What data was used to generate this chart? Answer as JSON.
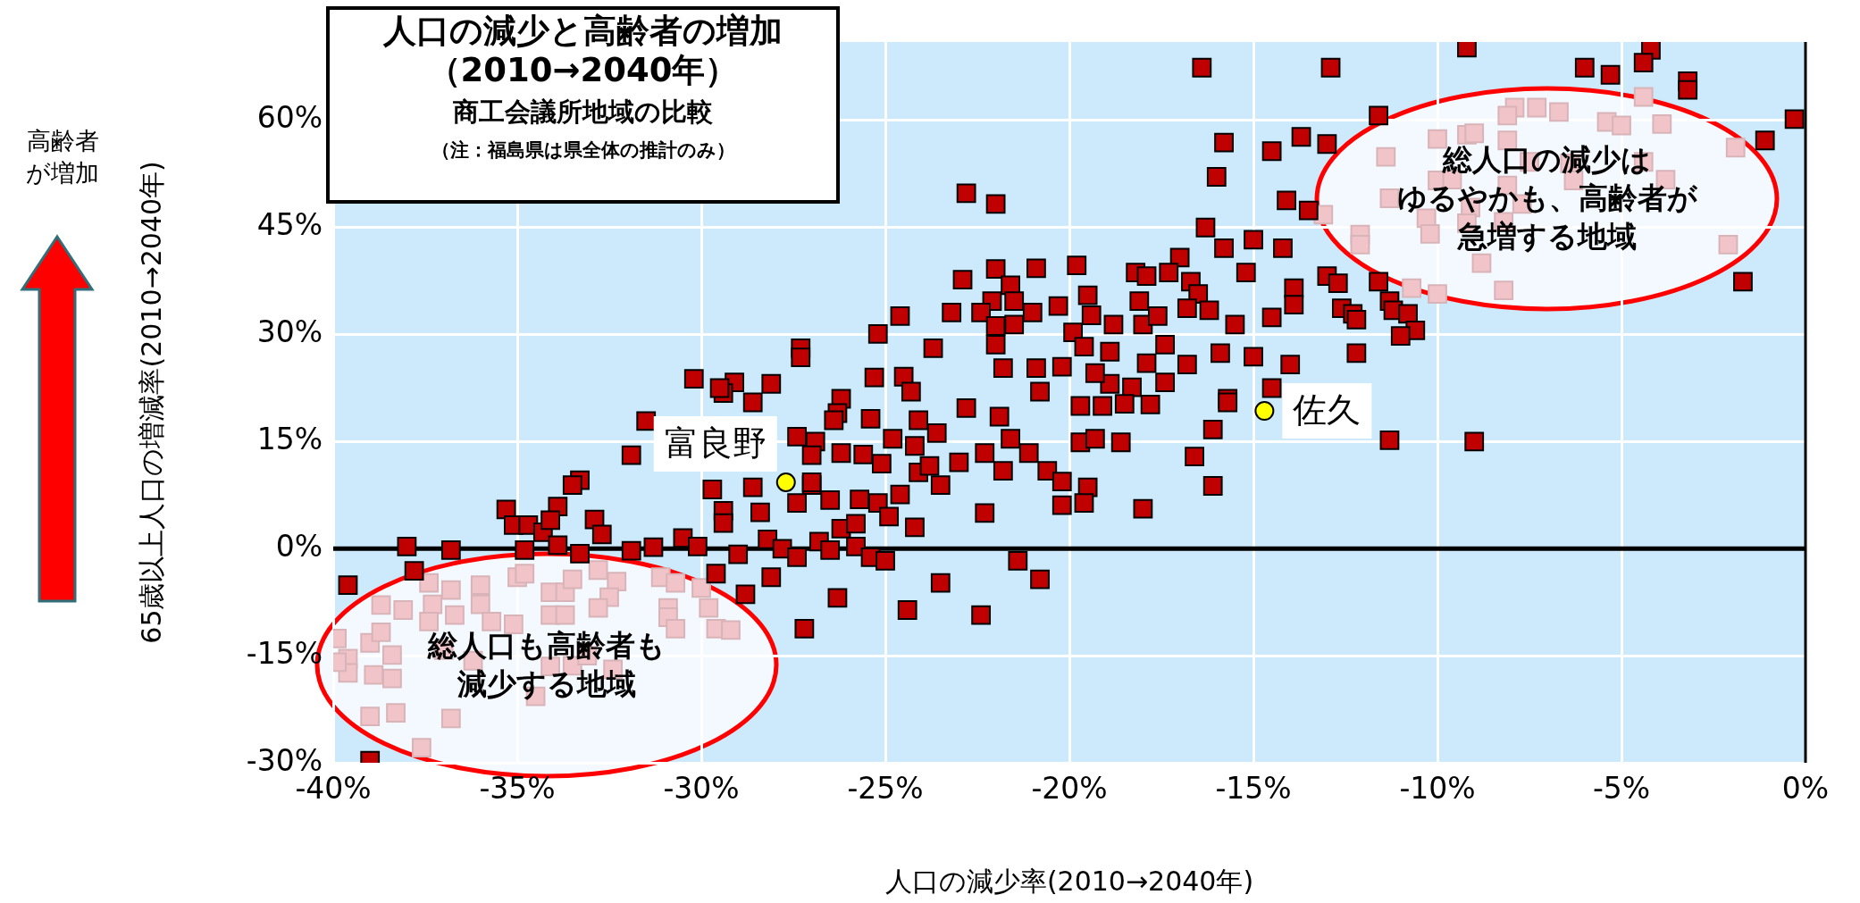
{
  "chart_data": {
    "type": "scatter",
    "title": "人口の減少と高齢者の増加（2010→2040年）",
    "subtitle": "商工会議所地域の比較",
    "xlabel": "人口の減少率(2010→2040年)",
    "ylabel": "65歳以上人口の増減率(2010→2040年)",
    "annotations": [
      "（注：福島県は県全体の推計のみ）",
      "総人口も高齢者も",
      "減少する地域",
      "総人口の減少は",
      "ゆるやかも、高齢者が",
      "急増する地域",
      "高齢者",
      "が増加"
    ],
    "xlim": [
      -40,
      0
    ],
    "ylim": [
      -30,
      71
    ],
    "xticks": [
      {
        "value": -40,
        "label": "-40%"
      },
      {
        "value": -35,
        "label": "-35%"
      },
      {
        "value": -30,
        "label": "-30%"
      },
      {
        "value": -25,
        "label": "-25%"
      },
      {
        "value": -20,
        "label": "-20%"
      },
      {
        "value": -15,
        "label": "-15%"
      },
      {
        "value": -10,
        "label": "-10%"
      },
      {
        "value": -5,
        "label": "-5%"
      },
      {
        "value": 0,
        "label": "0%"
      }
    ],
    "yticks": [
      {
        "value": -30,
        "label": "-30%"
      },
      {
        "value": -15,
        "label": "-15%"
      },
      {
        "value": 0,
        "label": "0%"
      },
      {
        "value": 15,
        "label": "15%"
      },
      {
        "value": 30,
        "label": "30%"
      },
      {
        "value": 45,
        "label": "45%"
      },
      {
        "value": 60,
        "label": "60%"
      }
    ],
    "grid": true,
    "legend": false,
    "marker": "square",
    "ref_lines": [
      {
        "axis": "y",
        "value": 0,
        "color": "#000000"
      }
    ],
    "series": [
      {
        "color": "#c00000",
        "x": [
          -12.9,
          -9.2,
          -6.0,
          -5.3,
          -4.2,
          -4.4,
          -3.2,
          -3.2,
          -0.3,
          -1.1,
          -1.7,
          -11.6,
          -13.0,
          -13.0,
          -12.7,
          -11.6,
          -12.6,
          -12.3,
          -12.2,
          -11.3,
          -11.2,
          -10.8,
          -10.6,
          -11.0,
          -12.2,
          -11.3,
          -9.0,
          -16.4,
          -15.8,
          -14.5,
          -13.7,
          -16.0,
          -14.1,
          -13.5,
          -22.8,
          -22.0,
          -16.3,
          -15.8,
          -15.0,
          -14.2,
          -17.0,
          -18.2,
          -17.9,
          -17.3,
          -16.7,
          -16.5,
          -16.8,
          -16.2,
          -15.5,
          -15.2,
          -13.9,
          -13.9,
          -14.5,
          -15.9,
          -15.0,
          -14.0,
          -14.5,
          -15.7,
          -22.0,
          -22.9,
          -20.9,
          -19.8,
          -21.6,
          -22.1,
          -21.5,
          -24.6,
          -23.2,
          -22.4,
          -21.0,
          -22.0,
          -21.5,
          -20.3,
          -19.5,
          -19.4,
          -18.8,
          -18.1,
          -18.0,
          -17.6,
          -19.9,
          -19.6,
          -18.9,
          -17.9,
          -17.4,
          -16.8,
          -17.4,
          -18.9,
          -19.3,
          -18.3,
          -25.2,
          -23.7,
          -22.0,
          -21.8,
          -20.9,
          -20.2,
          -25.3,
          -24.5,
          -24.3,
          -20.8,
          -26.2,
          -26.3,
          -25.4,
          -24.1,
          -22.8,
          -21.9,
          -19.7,
          -19.1,
          -18.5,
          -17.8,
          -15.7,
          -16.1,
          -16.6,
          -16.1,
          -24.8,
          -24.2,
          -23.6,
          -21.6,
          -21.1,
          -19.7,
          -19.3,
          -18.6,
          -25.6,
          -25.1,
          -24.1,
          -23.8,
          -23.0,
          -22.3,
          -21.8,
          -20.6,
          -20.2,
          -19.5,
          -20.2,
          -19.6,
          -18.0,
          -23.5,
          -24.6,
          -25.7,
          -25.2,
          -24.9,
          -24.2,
          -22.3,
          -26.2,
          -25.8,
          -25.4,
          -25.0,
          -21.4,
          -20.8,
          -23.5,
          -26.3,
          -24.4,
          -22.4,
          -31.5,
          -31.9,
          -33.3,
          -33.5,
          -35.3,
          -35.1,
          -34.7,
          -34.3,
          -33.9,
          -34.1,
          -32.9,
          -32.7,
          -38.0,
          -36.8,
          -34.8,
          -33.9,
          -33.3,
          -31.9,
          -31.3,
          -30.5,
          -30.1,
          -37.8,
          -39.6,
          -39.0,
          -29.7,
          -28.6,
          -27.0,
          -29.4,
          -28.4,
          -27.4,
          -29.4,
          -28.2,
          -27.8,
          -27.4,
          -29.0,
          -29.6,
          -28.1,
          -28.8,
          -27.2,
          -27.0,
          -26.9,
          -27.3,
          -27.3,
          -30.2,
          -29.1,
          -28.1,
          -29.4,
          -28.6,
          -29.5,
          -27.4,
          -27.0,
          -26.4,
          -26.2,
          -26.5,
          -25.8,
          -26.8,
          -26.5
        ],
        "values": [
          67.4,
          70.2,
          67.4,
          66.4,
          69.9,
          68.1,
          65.5,
          64.3,
          60.2,
          57.2,
          37.4,
          60.7,
          56.7,
          38.2,
          37.2,
          37.4,
          33.7,
          32.9,
          32.1,
          34.7,
          33.4,
          32.9,
          30.6,
          29.8,
          27.4,
          15.2,
          15.0,
          67.4,
          56.9,
          55.7,
          57.7,
          52.1,
          48.8,
          47.4,
          49.8,
          48.3,
          45.0,
          42.1,
          43.3,
          42.1,
          40.8,
          38.7,
          38.2,
          38.7,
          37.4,
          35.7,
          33.7,
          33.4,
          31.4,
          38.7,
          36.5,
          34.2,
          32.4,
          27.4,
          26.9,
          25.8,
          22.5,
          21.0,
          39.2,
          37.7,
          39.3,
          39.7,
          36.9,
          34.7,
          34.7,
          32.6,
          33.1,
          33.1,
          33.1,
          31.2,
          31.4,
          34.0,
          35.5,
          32.7,
          31.4,
          34.7,
          31.4,
          32.6,
          30.3,
          28.3,
          27.6,
          26.0,
          28.6,
          25.8,
          23.3,
          23.1,
          24.6,
          22.6,
          30.1,
          28.1,
          28.6,
          25.3,
          25.3,
          25.5,
          24.0,
          24.1,
          22.0,
          22.0,
          21.0,
          19.0,
          18.2,
          18.0,
          19.7,
          18.5,
          20.0,
          20.0,
          20.3,
          20.2,
          20.5,
          16.7,
          12.9,
          8.8,
          15.4,
          14.4,
          16.2,
          15.4,
          13.4,
          14.9,
          15.4,
          14.9,
          13.2,
          11.9,
          10.7,
          11.6,
          12.1,
          13.4,
          10.9,
          10.9,
          9.4,
          8.6,
          6.1,
          6.4,
          5.6,
          8.9,
          7.6,
          6.9,
          6.4,
          4.5,
          3.0,
          5.0,
          2.8,
          0.3,
          -1.2,
          -1.7,
          -1.7,
          -4.3,
          -4.8,
          -6.9,
          -8.6,
          -9.3,
          17.9,
          13.1,
          9.6,
          8.9,
          5.5,
          3.3,
          3.3,
          2.3,
          5.9,
          4.0,
          4.1,
          2.0,
          0.3,
          -0.2,
          -0.2,
          0.5,
          -0.7,
          -0.3,
          0.2,
          1.5,
          0.3,
          -3.1,
          -5.1,
          -29.7,
          8.3,
          8.6,
          8.9,
          5.3,
          5.1,
          6.4,
          3.6,
          1.3,
          0.0,
          -1.2,
          -0.8,
          -3.5,
          -4.0,
          -6.4,
          -11.2,
          9.3,
          15.0,
          28.1,
          26.8,
          23.8,
          23.3,
          23.1,
          21.8,
          20.5,
          22.5,
          15.7,
          13.1,
          18.0,
          13.4,
          6.8,
          3.5,
          1.0,
          -0.2
        ]
      },
      {
        "color": "#f0c4c8",
        "x": [
          -39.9,
          -39.6,
          -39.6,
          -39.0,
          -38.7,
          -38.7,
          -38.9,
          -38.4,
          -38.4,
          -38.1,
          -38.3,
          -39.0,
          -37.6,
          -36.8,
          -37.4,
          -37.3,
          -37.4,
          -36.8,
          -36.7,
          -36.0,
          -36.0,
          -35.7,
          -37.0,
          -36.2,
          -35.0,
          -34.8,
          -34.1,
          -33.7,
          -34.1,
          -33.7,
          -35.1,
          -33.5,
          -32.8,
          -32.3,
          -32.5,
          -32.8,
          -34.1,
          -33.5,
          -32.4,
          -31.1,
          -30.7,
          -30.9,
          -30.9,
          -29.8,
          -29.6,
          -29.2,
          -30.0,
          -30.7,
          -34.5,
          -33.1,
          -39.9,
          -7.9,
          -7.3,
          -6.7,
          -8.1,
          -4.4,
          -5.4,
          -5.0,
          -3.9,
          -1.9,
          -2.1,
          -9.2,
          -9.0,
          -10.0,
          -8.1,
          -11.4,
          -7.5,
          -6.4,
          -4.4,
          -10.0,
          -9.6,
          -8.1,
          -6.3,
          -3.8,
          -11.3,
          -9.1,
          -7.7,
          -13.1,
          -10.3,
          -9.2,
          -8.2,
          -12.1,
          -12.1,
          -10.2,
          -8.8,
          -10.7,
          -10.0,
          -8.2
        ],
        "values": [
          -12.6,
          -15.4,
          -17.4,
          -13.2,
          -7.9,
          -11.7,
          -17.7,
          -18.2,
          -14.9,
          -8.6,
          -23.0,
          -23.5,
          -27.9,
          -23.8,
          -4.8,
          -7.8,
          -10.2,
          -5.8,
          -9.3,
          -5.1,
          -7.8,
          -10.2,
          -14.2,
          -15.7,
          -4.0,
          -3.5,
          -6.1,
          -6.1,
          -9.3,
          -9.3,
          -10.6,
          -4.3,
          -3.0,
          -4.6,
          -6.8,
          -8.3,
          -16.5,
          -16.4,
          -16.9,
          -4.0,
          -4.8,
          -8.3,
          -9.6,
          -8.3,
          -11.2,
          -11.4,
          -5.5,
          -11.2,
          -20.7,
          -15.0,
          -15.9,
          61.8,
          61.8,
          61.2,
          60.7,
          63.3,
          59.8,
          59.3,
          59.5,
          56.2,
          42.6,
          58.0,
          58.2,
          57.4,
          57.2,
          54.9,
          54.2,
          54.0,
          54.2,
          51.6,
          51.7,
          50.9,
          51.6,
          51.7,
          49.1,
          47.8,
          48.3,
          46.8,
          46.3,
          45.6,
          45.8,
          44.0,
          42.6,
          44.1,
          40.0,
          36.5,
          35.7,
          36.2
        ]
      },
      {
        "name": "富良野",
        "color": "#ffff00",
        "marker": "circle",
        "x": [
          -27.7
        ],
        "values": [
          9.3
        ]
      },
      {
        "name": "佐久",
        "color": "#ffff00",
        "marker": "circle",
        "x": [
          -14.7
        ],
        "values": [
          19.3
        ]
      }
    ]
  }
}
